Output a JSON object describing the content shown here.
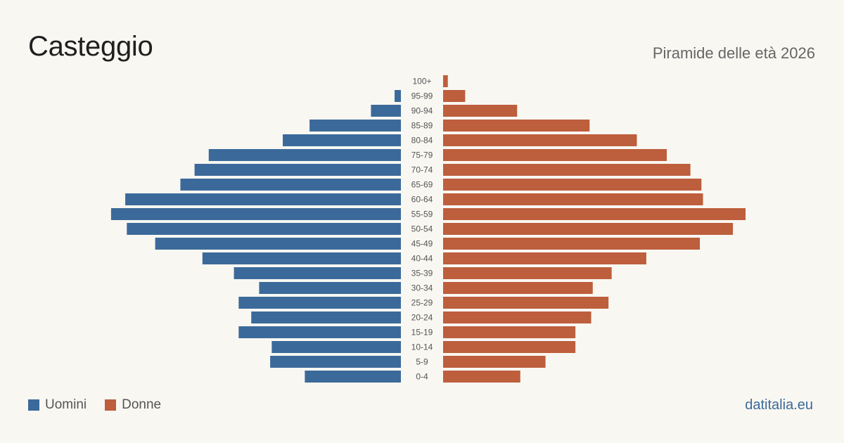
{
  "header": {
    "title": "Casteggio",
    "subtitle": "Piramide delle età 2026"
  },
  "legend": {
    "men_label": "Uomini",
    "women_label": "Donne"
  },
  "brand": "datitalia.eu",
  "colors": {
    "men": "#3b6a9a",
    "women": "#bd5e3c",
    "background": "#f9f7f2",
    "label": "#555555"
  },
  "chart_data": {
    "type": "bar",
    "orientation": "horizontal-pyramid",
    "title": "Casteggio",
    "subtitle": "Piramide delle età 2026",
    "categories": [
      "100+",
      "95-99",
      "90-94",
      "85-89",
      "80-84",
      "75-79",
      "70-74",
      "65-69",
      "60-64",
      "55-59",
      "50-54",
      "45-49",
      "40-44",
      "35-39",
      "30-34",
      "25-29",
      "20-24",
      "15-19",
      "10-14",
      "5-9",
      "0-4"
    ],
    "series": [
      {
        "name": "Uomini",
        "values": [
          0,
          4,
          19,
          58,
          75,
          122,
          131,
          140,
          175,
          184,
          174,
          156,
          126,
          106,
          90,
          103,
          95,
          103,
          82,
          83,
          61
        ]
      },
      {
        "name": "Donne",
        "values": [
          3,
          14,
          47,
          93,
          123,
          142,
          157,
          164,
          165,
          192,
          184,
          163,
          129,
          107,
          95,
          105,
          94,
          84,
          84,
          65,
          49
        ]
      }
    ],
    "xlim": [
      0,
      192
    ],
    "grid": false,
    "legend_position": "bottom-left"
  }
}
